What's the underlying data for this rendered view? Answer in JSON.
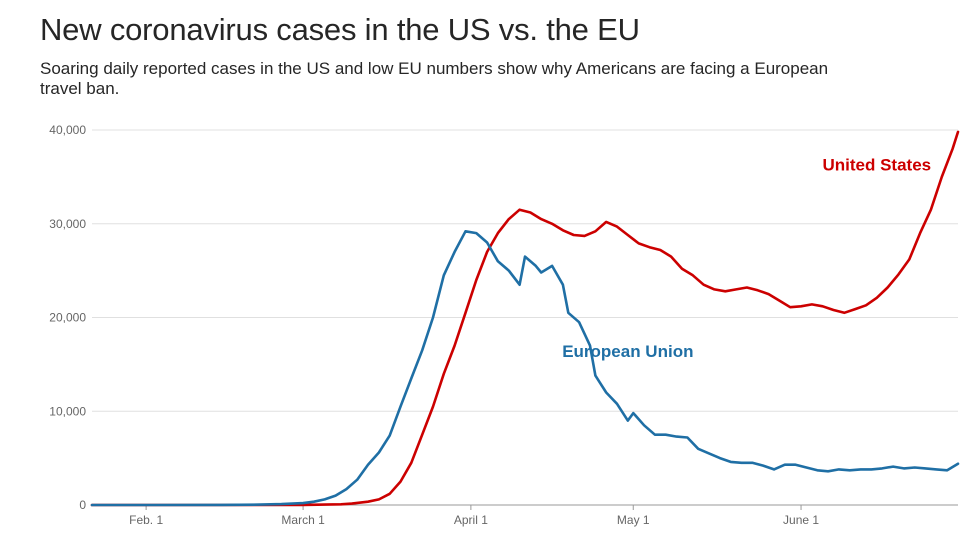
{
  "title": "New coronavirus cases in the US vs. the EU",
  "subtitle": "Soaring daily reported cases in the US and low EU numbers show why Americans are facing a European travel ban.",
  "colors": {
    "us": "#cc0000",
    "eu": "#1f6fa5",
    "grid": "#e0e0e0",
    "axis": "#999999",
    "text": "#262626"
  },
  "chart_data": {
    "type": "line",
    "title": "New coronavirus cases in the US vs. the EU",
    "subtitle": "Soaring daily reported cases in the US and low EU numbers show why Americans are facing a European travel ban.",
    "xlabel": "",
    "ylabel": "",
    "xlim": [
      "2020-01-22",
      "2020-06-30"
    ],
    "ylim": [
      0,
      40000
    ],
    "grid": true,
    "x_ticks": [
      {
        "date": "2020-02-01",
        "label": "Feb. 1"
      },
      {
        "date": "2020-03-01",
        "label": "March 1"
      },
      {
        "date": "2020-04-01",
        "label": "April 1"
      },
      {
        "date": "2020-05-01",
        "label": "May 1"
      },
      {
        "date": "2020-06-01",
        "label": "June 1"
      }
    ],
    "y_ticks": [
      {
        "value": 0,
        "label": "0"
      },
      {
        "value": 10000,
        "label": "10,000"
      },
      {
        "value": 20000,
        "label": "20,000"
      },
      {
        "value": 30000,
        "label": "30,000"
      },
      {
        "value": 40000,
        "label": "40,000"
      }
    ],
    "series": [
      {
        "name": "United States",
        "color": "#cc0000",
        "label_anchor": {
          "date": "2020-06-15",
          "value": 35700
        },
        "points": [
          [
            "2020-01-22",
            0
          ],
          [
            "2020-02-01",
            0
          ],
          [
            "2020-02-15",
            0
          ],
          [
            "2020-03-01",
            10
          ],
          [
            "2020-03-05",
            40
          ],
          [
            "2020-03-08",
            80
          ],
          [
            "2020-03-10",
            150
          ],
          [
            "2020-03-13",
            350
          ],
          [
            "2020-03-15",
            600
          ],
          [
            "2020-03-17",
            1200
          ],
          [
            "2020-03-19",
            2500
          ],
          [
            "2020-03-21",
            4500
          ],
          [
            "2020-03-23",
            7500
          ],
          [
            "2020-03-25",
            10500
          ],
          [
            "2020-03-27",
            14000
          ],
          [
            "2020-03-29",
            17000
          ],
          [
            "2020-03-31",
            20500
          ],
          [
            "2020-04-02",
            24000
          ],
          [
            "2020-04-04",
            27000
          ],
          [
            "2020-04-06",
            29000
          ],
          [
            "2020-04-08",
            30500
          ],
          [
            "2020-04-10",
            31500
          ],
          [
            "2020-04-12",
            31200
          ],
          [
            "2020-04-14",
            30500
          ],
          [
            "2020-04-16",
            30000
          ],
          [
            "2020-04-18",
            29300
          ],
          [
            "2020-04-20",
            28800
          ],
          [
            "2020-04-22",
            28700
          ],
          [
            "2020-04-24",
            29200
          ],
          [
            "2020-04-26",
            30200
          ],
          [
            "2020-04-28",
            29700
          ],
          [
            "2020-04-30",
            28800
          ],
          [
            "2020-05-02",
            27900
          ],
          [
            "2020-05-04",
            27500
          ],
          [
            "2020-05-06",
            27200
          ],
          [
            "2020-05-08",
            26500
          ],
          [
            "2020-05-10",
            25200
          ],
          [
            "2020-05-12",
            24500
          ],
          [
            "2020-05-14",
            23500
          ],
          [
            "2020-05-16",
            23000
          ],
          [
            "2020-05-18",
            22800
          ],
          [
            "2020-05-20",
            23000
          ],
          [
            "2020-05-22",
            23200
          ],
          [
            "2020-05-24",
            22900
          ],
          [
            "2020-05-26",
            22500
          ],
          [
            "2020-05-28",
            21800
          ],
          [
            "2020-05-30",
            21100
          ],
          [
            "2020-06-01",
            21200
          ],
          [
            "2020-06-03",
            21400
          ],
          [
            "2020-06-05",
            21200
          ],
          [
            "2020-06-07",
            20800
          ],
          [
            "2020-06-09",
            20500
          ],
          [
            "2020-06-11",
            20900
          ],
          [
            "2020-06-13",
            21300
          ],
          [
            "2020-06-15",
            22100
          ],
          [
            "2020-06-17",
            23200
          ],
          [
            "2020-06-19",
            24600
          ],
          [
            "2020-06-21",
            26200
          ],
          [
            "2020-06-23",
            29000
          ],
          [
            "2020-06-25",
            31500
          ],
          [
            "2020-06-27",
            35000
          ],
          [
            "2020-06-29",
            38000
          ],
          [
            "2020-06-30",
            39800
          ]
        ]
      },
      {
        "name": "European Union",
        "color": "#1f6fa5",
        "label_anchor": {
          "date": "2020-04-30",
          "value": 15800
        },
        "points": [
          [
            "2020-01-22",
            0
          ],
          [
            "2020-02-01",
            0
          ],
          [
            "2020-02-15",
            10
          ],
          [
            "2020-02-22",
            40
          ],
          [
            "2020-02-26",
            100
          ],
          [
            "2020-03-01",
            200
          ],
          [
            "2020-03-03",
            350
          ],
          [
            "2020-03-05",
            600
          ],
          [
            "2020-03-07",
            1000
          ],
          [
            "2020-03-09",
            1700
          ],
          [
            "2020-03-11",
            2700
          ],
          [
            "2020-03-13",
            4300
          ],
          [
            "2020-03-15",
            5600
          ],
          [
            "2020-03-17",
            7400
          ],
          [
            "2020-03-19",
            10500
          ],
          [
            "2020-03-21",
            13500
          ],
          [
            "2020-03-23",
            16500
          ],
          [
            "2020-03-25",
            20000
          ],
          [
            "2020-03-27",
            24500
          ],
          [
            "2020-03-29",
            27000
          ],
          [
            "2020-03-31",
            29200
          ],
          [
            "2020-04-02",
            29000
          ],
          [
            "2020-04-04",
            28000
          ],
          [
            "2020-04-06",
            26000
          ],
          [
            "2020-04-08",
            25000
          ],
          [
            "2020-04-10",
            23500
          ],
          [
            "2020-04-11",
            26500
          ],
          [
            "2020-04-13",
            25500
          ],
          [
            "2020-04-14",
            24800
          ],
          [
            "2020-04-16",
            25500
          ],
          [
            "2020-04-18",
            23500
          ],
          [
            "2020-04-19",
            20500
          ],
          [
            "2020-04-21",
            19500
          ],
          [
            "2020-04-23",
            17000
          ],
          [
            "2020-04-24",
            13800
          ],
          [
            "2020-04-26",
            12000
          ],
          [
            "2020-04-28",
            10800
          ],
          [
            "2020-04-30",
            9000
          ],
          [
            "2020-05-01",
            9800
          ],
          [
            "2020-05-03",
            8500
          ],
          [
            "2020-05-05",
            7500
          ],
          [
            "2020-05-07",
            7500
          ],
          [
            "2020-05-09",
            7300
          ],
          [
            "2020-05-11",
            7200
          ],
          [
            "2020-05-13",
            6000
          ],
          [
            "2020-05-15",
            5500
          ],
          [
            "2020-05-17",
            5000
          ],
          [
            "2020-05-19",
            4600
          ],
          [
            "2020-05-21",
            4500
          ],
          [
            "2020-05-23",
            4500
          ],
          [
            "2020-05-25",
            4200
          ],
          [
            "2020-05-27",
            3800
          ],
          [
            "2020-05-29",
            4300
          ],
          [
            "2020-05-31",
            4300
          ],
          [
            "2020-06-02",
            4000
          ],
          [
            "2020-06-04",
            3700
          ],
          [
            "2020-06-06",
            3600
          ],
          [
            "2020-06-08",
            3800
          ],
          [
            "2020-06-10",
            3700
          ],
          [
            "2020-06-12",
            3800
          ],
          [
            "2020-06-14",
            3800
          ],
          [
            "2020-06-16",
            3900
          ],
          [
            "2020-06-18",
            4100
          ],
          [
            "2020-06-20",
            3900
          ],
          [
            "2020-06-22",
            4000
          ],
          [
            "2020-06-24",
            3900
          ],
          [
            "2020-06-26",
            3800
          ],
          [
            "2020-06-28",
            3700
          ],
          [
            "2020-06-30",
            4400
          ]
        ]
      }
    ]
  }
}
